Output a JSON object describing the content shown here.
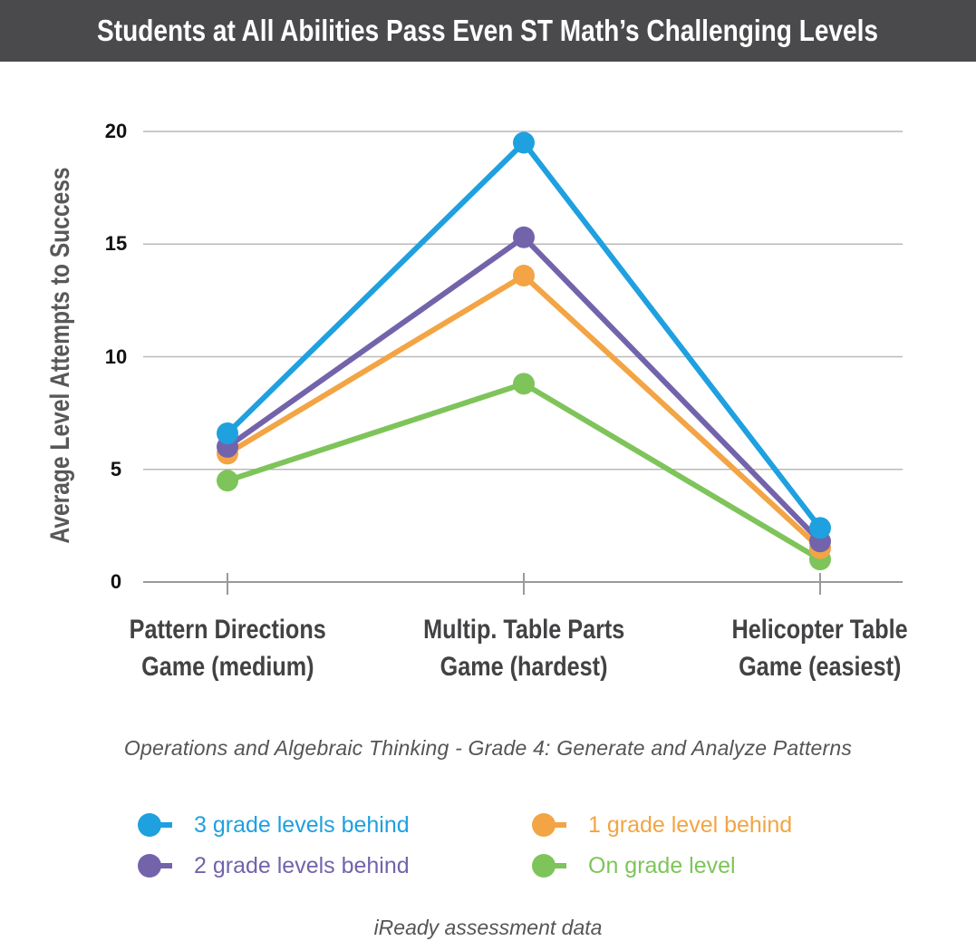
{
  "title": "Students at All Abilities Pass Even ST Math’s Challenging Levels",
  "subtitle": "Operations and Algebraic Thinking - Grade 4: Generate and Analyze Patterns",
  "source": "iReady assessment data",
  "chart_data": {
    "type": "line",
    "ylabel": "Average Level Attempts to Success",
    "ylim": [
      0,
      20
    ],
    "yticks": [
      "0",
      "5",
      "10",
      "15",
      "20"
    ],
    "categories": [
      [
        "Pattern Directions",
        "Game (medium)"
      ],
      [
        "Multip. Table Parts",
        "Game (hardest)"
      ],
      [
        "Helicopter Table",
        "Game (easiest)"
      ]
    ],
    "grid": true,
    "legend_position": "bottom",
    "series": [
      {
        "name": "On grade level",
        "color": "#7ec45a",
        "values": [
          4.5,
          8.8,
          1.0
        ]
      },
      {
        "name": "1 grade level behind",
        "color": "#f3a444",
        "values": [
          5.7,
          13.6,
          1.5
        ]
      },
      {
        "name": "2 grade levels behind",
        "color": "#7363ab",
        "values": [
          6.0,
          15.3,
          1.8
        ]
      },
      {
        "name": "3 grade levels behind",
        "color": "#1fa0df",
        "values": [
          6.6,
          19.5,
          2.4
        ]
      }
    ],
    "legend_order": [
      3,
      1,
      2,
      0
    ]
  }
}
